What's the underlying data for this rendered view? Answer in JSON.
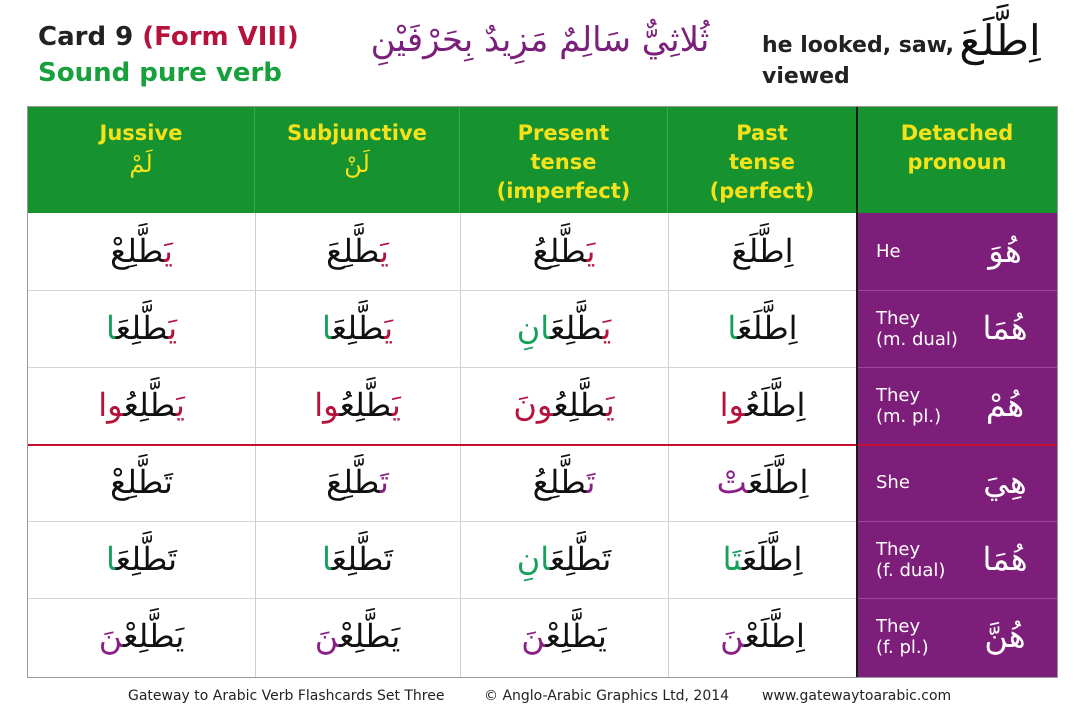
{
  "header": {
    "card": "Card 9",
    "form": "(Form VIII)",
    "subtitle": "Sound pure verb",
    "arabic_title": "ثُلاثِيٌّ سَالِمٌ مَزِيدٌ بِحَرْفَيْنِ",
    "meaning_line1": "he looked, saw,",
    "meaning_line2": "viewed",
    "verb": "اِطَّلَعَ"
  },
  "columns": [
    {
      "l1": "Jussive",
      "l2": "",
      "l3": "",
      "ar": "لَمْ"
    },
    {
      "l1": "Subjunctive",
      "l2": "",
      "l3": "",
      "ar": "لَنْ"
    },
    {
      "l1": "Present",
      "l2": "tense",
      "l3": "(imperfect)",
      "ar": ""
    },
    {
      "l1": "Past",
      "l2": "tense",
      "l3": "(perfect)",
      "ar": ""
    },
    {
      "l1": "Detached",
      "l2": "pronoun",
      "l3": "",
      "ar": ""
    }
  ],
  "rows": [
    {
      "en1": "He",
      "en2": "",
      "pronoun": "هُوَ",
      "jussive": [
        [
          "يَ",
          "red"
        ],
        [
          "طَّلِعْ",
          "black"
        ]
      ],
      "subjunctive": [
        [
          "يَ",
          "red"
        ],
        [
          "طَّلِعَ",
          "black"
        ]
      ],
      "present": [
        [
          "يَ",
          "red"
        ],
        [
          "طَّلِعُ",
          "black"
        ]
      ],
      "past": [
        [
          "اِطَّلَعَ",
          "black"
        ]
      ]
    },
    {
      "en1": "They",
      "en2": "(m. dual)",
      "pronoun": "هُمَا",
      "jussive": [
        [
          "يَ",
          "red"
        ],
        [
          "طَّلِعَ",
          "black"
        ],
        [
          "ا",
          "green"
        ]
      ],
      "subjunctive": [
        [
          "يَ",
          "red"
        ],
        [
          "طَّلِعَ",
          "black"
        ],
        [
          "ا",
          "green"
        ]
      ],
      "present": [
        [
          "يَ",
          "red"
        ],
        [
          "طَّلِعَ",
          "black"
        ],
        [
          "انِ",
          "green"
        ]
      ],
      "past": [
        [
          "اِطَّلَعَ",
          "black"
        ],
        [
          "ا",
          "green"
        ]
      ]
    },
    {
      "en1": "They",
      "en2": "(m. pl.)",
      "pronoun": "هُمْ",
      "jussive": [
        [
          "يَ",
          "red"
        ],
        [
          "طَّلِعُ",
          "black"
        ],
        [
          "وا",
          "red"
        ]
      ],
      "subjunctive": [
        [
          "يَ",
          "red"
        ],
        [
          "طَّلِعُ",
          "black"
        ],
        [
          "وا",
          "red"
        ]
      ],
      "present": [
        [
          "يَ",
          "red"
        ],
        [
          "طَّلِعُ",
          "black"
        ],
        [
          "ونَ",
          "red"
        ]
      ],
      "past": [
        [
          "اِطَّلَعُ",
          "black"
        ],
        [
          "وا",
          "red"
        ]
      ]
    },
    {
      "en1": "She",
      "en2": "",
      "pronoun": "هِيَ",
      "jussive": [
        [
          "تَ",
          "black"
        ],
        [
          "طَّلِعْ",
          "black"
        ]
      ],
      "subjunctive": [
        [
          "تَ",
          "purple"
        ],
        [
          "طَّلِعَ",
          "black"
        ]
      ],
      "present": [
        [
          "تَ",
          "purple"
        ],
        [
          "طَّلِعُ",
          "black"
        ]
      ],
      "past": [
        [
          "اِطَّلَعَ",
          "black"
        ],
        [
          "تْ",
          "purple"
        ]
      ]
    },
    {
      "en1": "They",
      "en2": "(f. dual)",
      "pronoun": "هُمَا",
      "jussive": [
        [
          "تَ",
          "black"
        ],
        [
          "طَّلِعَ",
          "black"
        ],
        [
          "ا",
          "green"
        ]
      ],
      "subjunctive": [
        [
          "تَ",
          "black"
        ],
        [
          "طَّلِعَ",
          "black"
        ],
        [
          "ا",
          "green"
        ]
      ],
      "present": [
        [
          "تَ",
          "black"
        ],
        [
          "طَّلِعَ",
          "black"
        ],
        [
          "انِ",
          "green"
        ]
      ],
      "past": [
        [
          "اِطَّلَعَ",
          "black"
        ],
        [
          "تَا",
          "green"
        ]
      ]
    },
    {
      "en1": "They",
      "en2": "(f. pl.)",
      "pronoun": "هُنَّ",
      "jussive": [
        [
          "يَ",
          "black"
        ],
        [
          "طَّلِعْ",
          "black"
        ],
        [
          "نَ",
          "purple"
        ]
      ],
      "subjunctive": [
        [
          "يَ",
          "black"
        ],
        [
          "طَّلِعْ",
          "black"
        ],
        [
          "نَ",
          "purple"
        ]
      ],
      "present": [
        [
          "يَ",
          "black"
        ],
        [
          "طَّلِعْ",
          "black"
        ],
        [
          "نَ",
          "purple"
        ]
      ],
      "past": [
        [
          "اِطَّلَعْ",
          "black"
        ],
        [
          "نَ",
          "purple"
        ]
      ]
    }
  ],
  "footer": {
    "left": "Gateway to Arabic Verb Flashcards Set Three",
    "middle": "© Anglo-Arabic Graphics Ltd, 2014",
    "right": "www.gatewaytoarabic.com"
  }
}
